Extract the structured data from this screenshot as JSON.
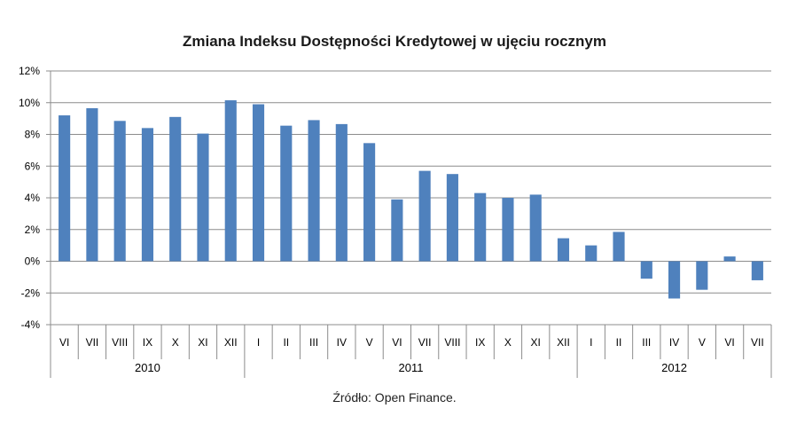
{
  "chart_data": {
    "type": "bar",
    "title": "Zmiana Indeksu Dostępności Kredytowej w ujęciu rocznym",
    "categories": [
      "VI",
      "VII",
      "VIII",
      "IX",
      "X",
      "XI",
      "XII",
      "I",
      "II",
      "III",
      "IV",
      "V",
      "VI",
      "VII",
      "VIII",
      "IX",
      "X",
      "XI",
      "XII",
      "I",
      "II",
      "III",
      "IV",
      "V",
      "VI",
      "VII"
    ],
    "groups": [
      {
        "label": "2010",
        "count": 7
      },
      {
        "label": "2011",
        "count": 12
      },
      {
        "label": "2012",
        "count": 7
      }
    ],
    "series": [
      {
        "values": [
          9.2,
          9.65,
          8.85,
          8.4,
          9.1,
          8.05,
          10.15,
          9.9,
          8.55,
          8.9,
          8.65,
          7.45,
          3.9,
          5.7,
          5.5,
          4.3,
          4.0,
          4.2,
          1.45,
          1.0,
          1.85,
          -1.1,
          -2.35,
          -1.8,
          0.3,
          -1.2
        ],
        "color": "#4f81bd"
      }
    ],
    "ylim": [
      -4,
      12
    ],
    "yticks": [
      -4,
      -2,
      0,
      2,
      4,
      6,
      8,
      10,
      12
    ],
    "ytick_labels": [
      "-4%",
      "-2%",
      "0%",
      "2%",
      "4%",
      "6%",
      "8%",
      "10%",
      "12%"
    ],
    "grid": true,
    "legend": "none",
    "source": "Źródło: Open Finance."
  }
}
